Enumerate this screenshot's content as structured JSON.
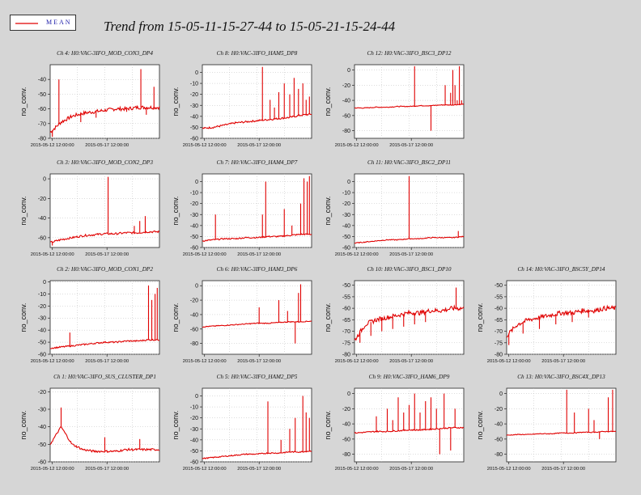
{
  "legend": {
    "label": "MEAN",
    "color": "#e00000"
  },
  "page_title": "Trend from 15-05-11-15-27-44 to 15-05-21-15-24-44",
  "chart_data": [
    {
      "type": "line",
      "title": "Ch 4: H0:VAC-3IFO_MOD_CON3_DP4",
      "ylabel": "no_conv.",
      "ylim": [
        -80,
        -30
      ],
      "yticks": [
        -40,
        -50,
        -60,
        -70,
        -80
      ],
      "xticks": [
        "2015-05-12 12:00:00",
        "2015-05-17 12:00:00"
      ],
      "series": [
        {
          "name": "MEAN",
          "base": [
            -76,
            -69,
            -65,
            -63,
            -62,
            -61,
            -60,
            -60,
            -59,
            -59,
            -59
          ],
          "noise": 1.2,
          "spikes": [
            [
              0.02,
              -79
            ],
            [
              0.08,
              -40
            ],
            [
              0.28,
              -69
            ],
            [
              0.42,
              -66
            ],
            [
              0.7,
              -62
            ],
            [
              0.83,
              -33
            ],
            [
              0.88,
              -64
            ],
            [
              0.95,
              -45
            ]
          ]
        }
      ]
    },
    {
      "type": "line",
      "title": "Ch 8: H0:VAC-3IFO_HAM5_DP8",
      "ylabel": "no_conv.",
      "ylim": [
        -60,
        7
      ],
      "yticks": [
        0,
        -10,
        -20,
        -30,
        -40,
        -50,
        -60
      ],
      "xticks": [
        "2015-05-12 12:00:00",
        "2015-05-17 12:00:00"
      ],
      "series": [
        {
          "name": "MEAN",
          "base": [
            -51,
            -50,
            -48,
            -46,
            -45,
            -44,
            -43,
            -42,
            -41,
            -39,
            -38
          ],
          "noise": 0.8,
          "spikes": [
            [
              0.55,
              5
            ],
            [
              0.62,
              -25
            ],
            [
              0.66,
              -32
            ],
            [
              0.7,
              -18
            ],
            [
              0.75,
              -10
            ],
            [
              0.8,
              -20
            ],
            [
              0.84,
              -5
            ],
            [
              0.88,
              -15
            ],
            [
              0.92,
              -10
            ],
            [
              0.95,
              -25
            ],
            [
              0.98,
              -22
            ]
          ]
        }
      ]
    },
    {
      "type": "line",
      "title": "Ch 12: H0:VAC-3IFO_BSC3_DP12",
      "ylabel": "no_conv.",
      "ylim": [
        -90,
        7
      ],
      "yticks": [
        0,
        -20,
        -40,
        -60,
        -80
      ],
      "xticks": [
        "2015-05-12 12:00:00",
        "2015-05-17 12:00:00"
      ],
      "series": [
        {
          "name": "MEAN",
          "base": [
            -50,
            -50,
            -49,
            -49,
            -48,
            -48,
            -47,
            -47,
            -46,
            -46,
            -45
          ],
          "noise": 0.5,
          "spikes": [
            [
              0.55,
              5
            ],
            [
              0.7,
              -80
            ],
            [
              0.83,
              -20
            ],
            [
              0.88,
              -30
            ],
            [
              0.9,
              0
            ],
            [
              0.92,
              -20
            ],
            [
              0.94,
              -40
            ],
            [
              0.96,
              5
            ],
            [
              0.98,
              -40
            ]
          ]
        }
      ]
    },
    null,
    {
      "type": "line",
      "title": "Ch 3: H0:VAC-3IFO_MOD_CON2_DP3",
      "ylabel": "no_conv.",
      "ylim": [
        -70,
        5
      ],
      "yticks": [
        0,
        -20,
        -40,
        -60
      ],
      "xticks": [
        "2015-05-12 12:00:00",
        "2015-05-17 12:00:00"
      ],
      "series": [
        {
          "name": "MEAN",
          "base": [
            -65,
            -62,
            -60,
            -58,
            -57,
            -56,
            -56,
            -55,
            -55,
            -54,
            -54
          ],
          "noise": 1,
          "spikes": [
            [
              0.02,
              -68
            ],
            [
              0.53,
              2
            ],
            [
              0.77,
              -48
            ],
            [
              0.82,
              -43
            ],
            [
              0.87,
              -38
            ]
          ]
        }
      ]
    },
    {
      "type": "line",
      "title": "Ch 7: H0:VAC-3IFO_HAM4_DP7",
      "ylabel": "no_conv.",
      "ylim": [
        -60,
        7
      ],
      "yticks": [
        0,
        -10,
        -20,
        -30,
        -40,
        -50,
        -60
      ],
      "xticks": [
        "2015-05-12 12:00:00",
        "2015-05-17 12:00:00"
      ],
      "series": [
        {
          "name": "MEAN",
          "base": [
            -54,
            -53,
            -52,
            -52,
            -51,
            -51,
            -50,
            -50,
            -49,
            -48,
            -48
          ],
          "noise": 0.6,
          "spikes": [
            [
              0.12,
              -30
            ],
            [
              0.55,
              -30
            ],
            [
              0.58,
              0
            ],
            [
              0.75,
              -25
            ],
            [
              0.82,
              -40
            ],
            [
              0.9,
              -20
            ],
            [
              0.93,
              3
            ],
            [
              0.96,
              0
            ],
            [
              0.98,
              5
            ]
          ]
        }
      ]
    },
    {
      "type": "line",
      "title": "Ch 11: H0:VAC-3IFO_BSC2_DP11",
      "ylabel": "no_conv.",
      "ylim": [
        -60,
        7
      ],
      "yticks": [
        0,
        -10,
        -20,
        -30,
        -40,
        -50,
        -60
      ],
      "xticks": [
        "2015-05-12 12:00:00",
        "2015-05-17 12:00:00"
      ],
      "series": [
        {
          "name": "MEAN",
          "base": [
            -56,
            -55,
            -54,
            -53,
            -53,
            -52,
            -52,
            -51,
            -51,
            -51,
            -50
          ],
          "noise": 0.4,
          "spikes": [
            [
              0.5,
              5
            ],
            [
              0.95,
              -45
            ]
          ]
        }
      ]
    },
    null,
    {
      "type": "line",
      "title": "Ch 2: H0:VAC-3IFO_MOD_CON1_DP2",
      "ylabel": "no_conv.",
      "ylim": [
        -60,
        1
      ],
      "yticks": [
        0,
        -10,
        -20,
        -30,
        -40,
        -50,
        -60
      ],
      "xticks": [
        "2015-05-12 12:00:00",
        "2015-05-17 12:00:00"
      ],
      "series": [
        {
          "name": "MEAN",
          "base": [
            -55,
            -54,
            -53,
            -52,
            -51,
            -50,
            -50,
            -49,
            -49,
            -48,
            -48
          ],
          "noise": 0.6,
          "spikes": [
            [
              0.18,
              -42
            ],
            [
              0.9,
              -3
            ],
            [
              0.93,
              -15
            ],
            [
              0.96,
              -10
            ],
            [
              0.98,
              -5
            ]
          ]
        }
      ]
    },
    {
      "type": "line",
      "title": "Ch 6: H0:VAC-3IFO_HAM3_DP6",
      "ylabel": "no_conv.",
      "ylim": [
        -95,
        7
      ],
      "yticks": [
        0,
        -20,
        -40,
        -60,
        -80
      ],
      "xticks": [
        "2015-05-12 12:00:00",
        "2015-05-17 12:00:00"
      ],
      "series": [
        {
          "name": "MEAN",
          "base": [
            -57,
            -56,
            -55,
            -54,
            -53,
            -52,
            -52,
            -51,
            -50,
            -50,
            -49
          ],
          "noise": 0.6,
          "spikes": [
            [
              0.52,
              -30
            ],
            [
              0.7,
              -20
            ],
            [
              0.78,
              -35
            ],
            [
              0.85,
              -80
            ],
            [
              0.88,
              -10
            ],
            [
              0.9,
              2
            ]
          ]
        }
      ]
    },
    {
      "type": "line",
      "title": "Ch 10: H0:VAC-3IFO_BSC1_DP10",
      "ylabel": "no_conv.",
      "ylim": [
        -80,
        -48
      ],
      "yticks": [
        -50,
        -55,
        -60,
        -65,
        -70,
        -75,
        -80
      ],
      "xticks": [
        "2015-05-12 12:00:00",
        "2015-05-17 12:00:00"
      ],
      "series": [
        {
          "name": "MEAN",
          "base": [
            -74,
            -67,
            -65,
            -64,
            -63,
            -62,
            -62,
            -61,
            -61,
            -60,
            -60
          ],
          "noise": 1,
          "spikes": [
            [
              0.05,
              -75
            ],
            [
              0.15,
              -72
            ],
            [
              0.25,
              -70
            ],
            [
              0.35,
              -69
            ],
            [
              0.45,
              -68
            ],
            [
              0.55,
              -67
            ],
            [
              0.65,
              -66
            ],
            [
              0.93,
              -51
            ]
          ]
        }
      ]
    },
    {
      "type": "line",
      "title": "Ch 14: H0:VAC-3IFO_BSC5Y_DP14",
      "ylabel": "no_conv.",
      "ylim": [
        -80,
        -48
      ],
      "yticks": [
        -50,
        -55,
        -60,
        -65,
        -70,
        -75,
        -80
      ],
      "xticks": [
        "2015-05-12 12:00:00",
        "2015-05-17 12:00:00"
      ],
      "series": [
        {
          "name": "MEAN",
          "base": [
            -72,
            -67,
            -65,
            -64,
            -63,
            -62,
            -62,
            -61,
            -61,
            -60,
            -60
          ],
          "noise": 1,
          "spikes": [
            [
              0.02,
              -76
            ],
            [
              0.15,
              -71
            ],
            [
              0.3,
              -69
            ],
            [
              0.45,
              -67
            ],
            [
              0.6,
              -66
            ],
            [
              0.75,
              -64
            ]
          ]
        }
      ]
    },
    {
      "type": "line",
      "title": "Ch 1: H0:VAC-3IFO_SUS_CLUSTER_DP1",
      "ylabel": "no_conv.",
      "ylim": [
        -60,
        -18
      ],
      "yticks": [
        -20,
        -30,
        -40,
        -50,
        -60
      ],
      "xticks": [
        "2015-05-12 12:00:00",
        "2015-05-17 12:00:00"
      ],
      "series": [
        {
          "name": "MEAN",
          "base": [
            -50,
            -40,
            -50,
            -53,
            -54,
            -54,
            -54,
            -53,
            -53,
            -53,
            -53
          ],
          "noise": 0.6,
          "spikes": [
            [
              0.1,
              -29
            ],
            [
              0.5,
              -46
            ],
            [
              0.82,
              -47
            ]
          ]
        }
      ]
    },
    {
      "type": "line",
      "title": "Ch 5: H0:VAC-3IFO_HAM2_DP5",
      "ylabel": "no_conv.",
      "ylim": [
        -60,
        7
      ],
      "yticks": [
        0,
        -10,
        -20,
        -30,
        -40,
        -50,
        -60
      ],
      "xticks": [
        "2015-05-12 12:00:00",
        "2015-05-17 12:00:00"
      ],
      "series": [
        {
          "name": "MEAN",
          "base": [
            -57,
            -56,
            -55,
            -54,
            -53,
            -53,
            -52,
            -52,
            -51,
            -51,
            -50
          ],
          "noise": 0.5,
          "spikes": [
            [
              0.6,
              -5
            ],
            [
              0.72,
              -40
            ],
            [
              0.8,
              -30
            ],
            [
              0.85,
              -20
            ],
            [
              0.92,
              0
            ],
            [
              0.95,
              -15
            ],
            [
              0.98,
              -20
            ]
          ]
        }
      ]
    },
    {
      "type": "line",
      "title": "Ch 9: H0:VAC-3IFO_HAM6_DP9",
      "ylabel": "no_conv.",
      "ylim": [
        -90,
        7
      ],
      "yticks": [
        0,
        -20,
        -40,
        -60,
        -80
      ],
      "xticks": [
        "2015-05-12 12:00:00",
        "2015-05-17 12:00:00"
      ],
      "series": [
        {
          "name": "MEAN",
          "base": [
            -52,
            -51,
            -50,
            -50,
            -49,
            -48,
            -48,
            -47,
            -46,
            -45,
            -45
          ],
          "noise": 0.8,
          "spikes": [
            [
              0.2,
              -30
            ],
            [
              0.3,
              -20
            ],
            [
              0.35,
              -35
            ],
            [
              0.4,
              -5
            ],
            [
              0.45,
              -25
            ],
            [
              0.5,
              -15
            ],
            [
              0.55,
              0
            ],
            [
              0.6,
              -25
            ],
            [
              0.65,
              -10
            ],
            [
              0.7,
              -5
            ],
            [
              0.75,
              -20
            ],
            [
              0.78,
              -80
            ],
            [
              0.82,
              0
            ],
            [
              0.88,
              -75
            ],
            [
              0.92,
              -20
            ]
          ]
        }
      ]
    },
    {
      "type": "line",
      "title": "Ch 13: H0:VAC-3IFO_BSC4X_DP13",
      "ylabel": "no_conv.",
      "ylim": [
        -90,
        7
      ],
      "yticks": [
        0,
        -20,
        -40,
        -60,
        -80
      ],
      "xticks": [
        "2015-05-12 12:00:00",
        "2015-05-17 12:00:00"
      ],
      "series": [
        {
          "name": "MEAN",
          "base": [
            -55,
            -54,
            -54,
            -53,
            -53,
            -52,
            -52,
            -51,
            -51,
            -50,
            -50
          ],
          "noise": 0.5,
          "spikes": [
            [
              0.55,
              5
            ],
            [
              0.62,
              -25
            ],
            [
              0.75,
              -20
            ],
            [
              0.8,
              -35
            ],
            [
              0.85,
              -60
            ],
            [
              0.93,
              -5
            ],
            [
              0.97,
              5
            ]
          ]
        }
      ]
    }
  ]
}
